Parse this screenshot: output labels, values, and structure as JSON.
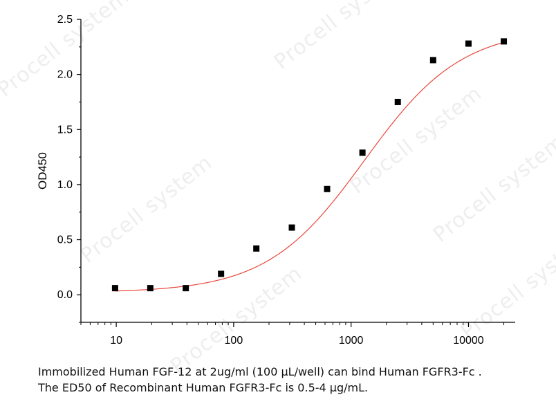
{
  "watermark": {
    "text": "Procell system"
  },
  "chart_data": {
    "type": "scatter",
    "xscale": "log",
    "xlim": [
      5,
      25000
    ],
    "ylim": [
      -0.25,
      2.5
    ],
    "xticks": [
      10,
      100,
      1000,
      10000
    ],
    "xtick_labels": [
      "10",
      "100",
      "1000",
      "10000"
    ],
    "yticks": [
      0.0,
      0.5,
      1.0,
      1.5,
      2.0,
      2.5
    ],
    "ytick_labels": [
      "0.0",
      "0.5",
      "1.0",
      "1.5",
      "2.0",
      "2.5"
    ],
    "xlabel": "",
    "ylabel": "OD450",
    "title": "",
    "series": [
      {
        "marker": "square",
        "color": "#000000",
        "x": [
          9.77,
          19.5,
          39.1,
          78.1,
          156,
          313,
          625,
          1250,
          2500,
          5000,
          10000,
          20000
        ],
        "y": [
          0.06,
          0.06,
          0.06,
          0.19,
          0.42,
          0.61,
          0.96,
          1.29,
          1.75,
          2.13,
          2.28,
          2.3
        ]
      }
    ],
    "fit_curve": {
      "color": "#e8463c",
      "model": "four-parameter logistic",
      "bottom": 0.02,
      "top": 2.42,
      "ec50": 1300,
      "hill": 1.05
    },
    "grid": false
  },
  "caption": {
    "line1": "Immobilized Human FGF-12 at 2ug/ml (100 μL/well) can bind Human FGFR3-Fc .",
    "line2": "The ED50 of Recombinant Human FGFR3-Fc is 0.5-4 μg/mL."
  }
}
